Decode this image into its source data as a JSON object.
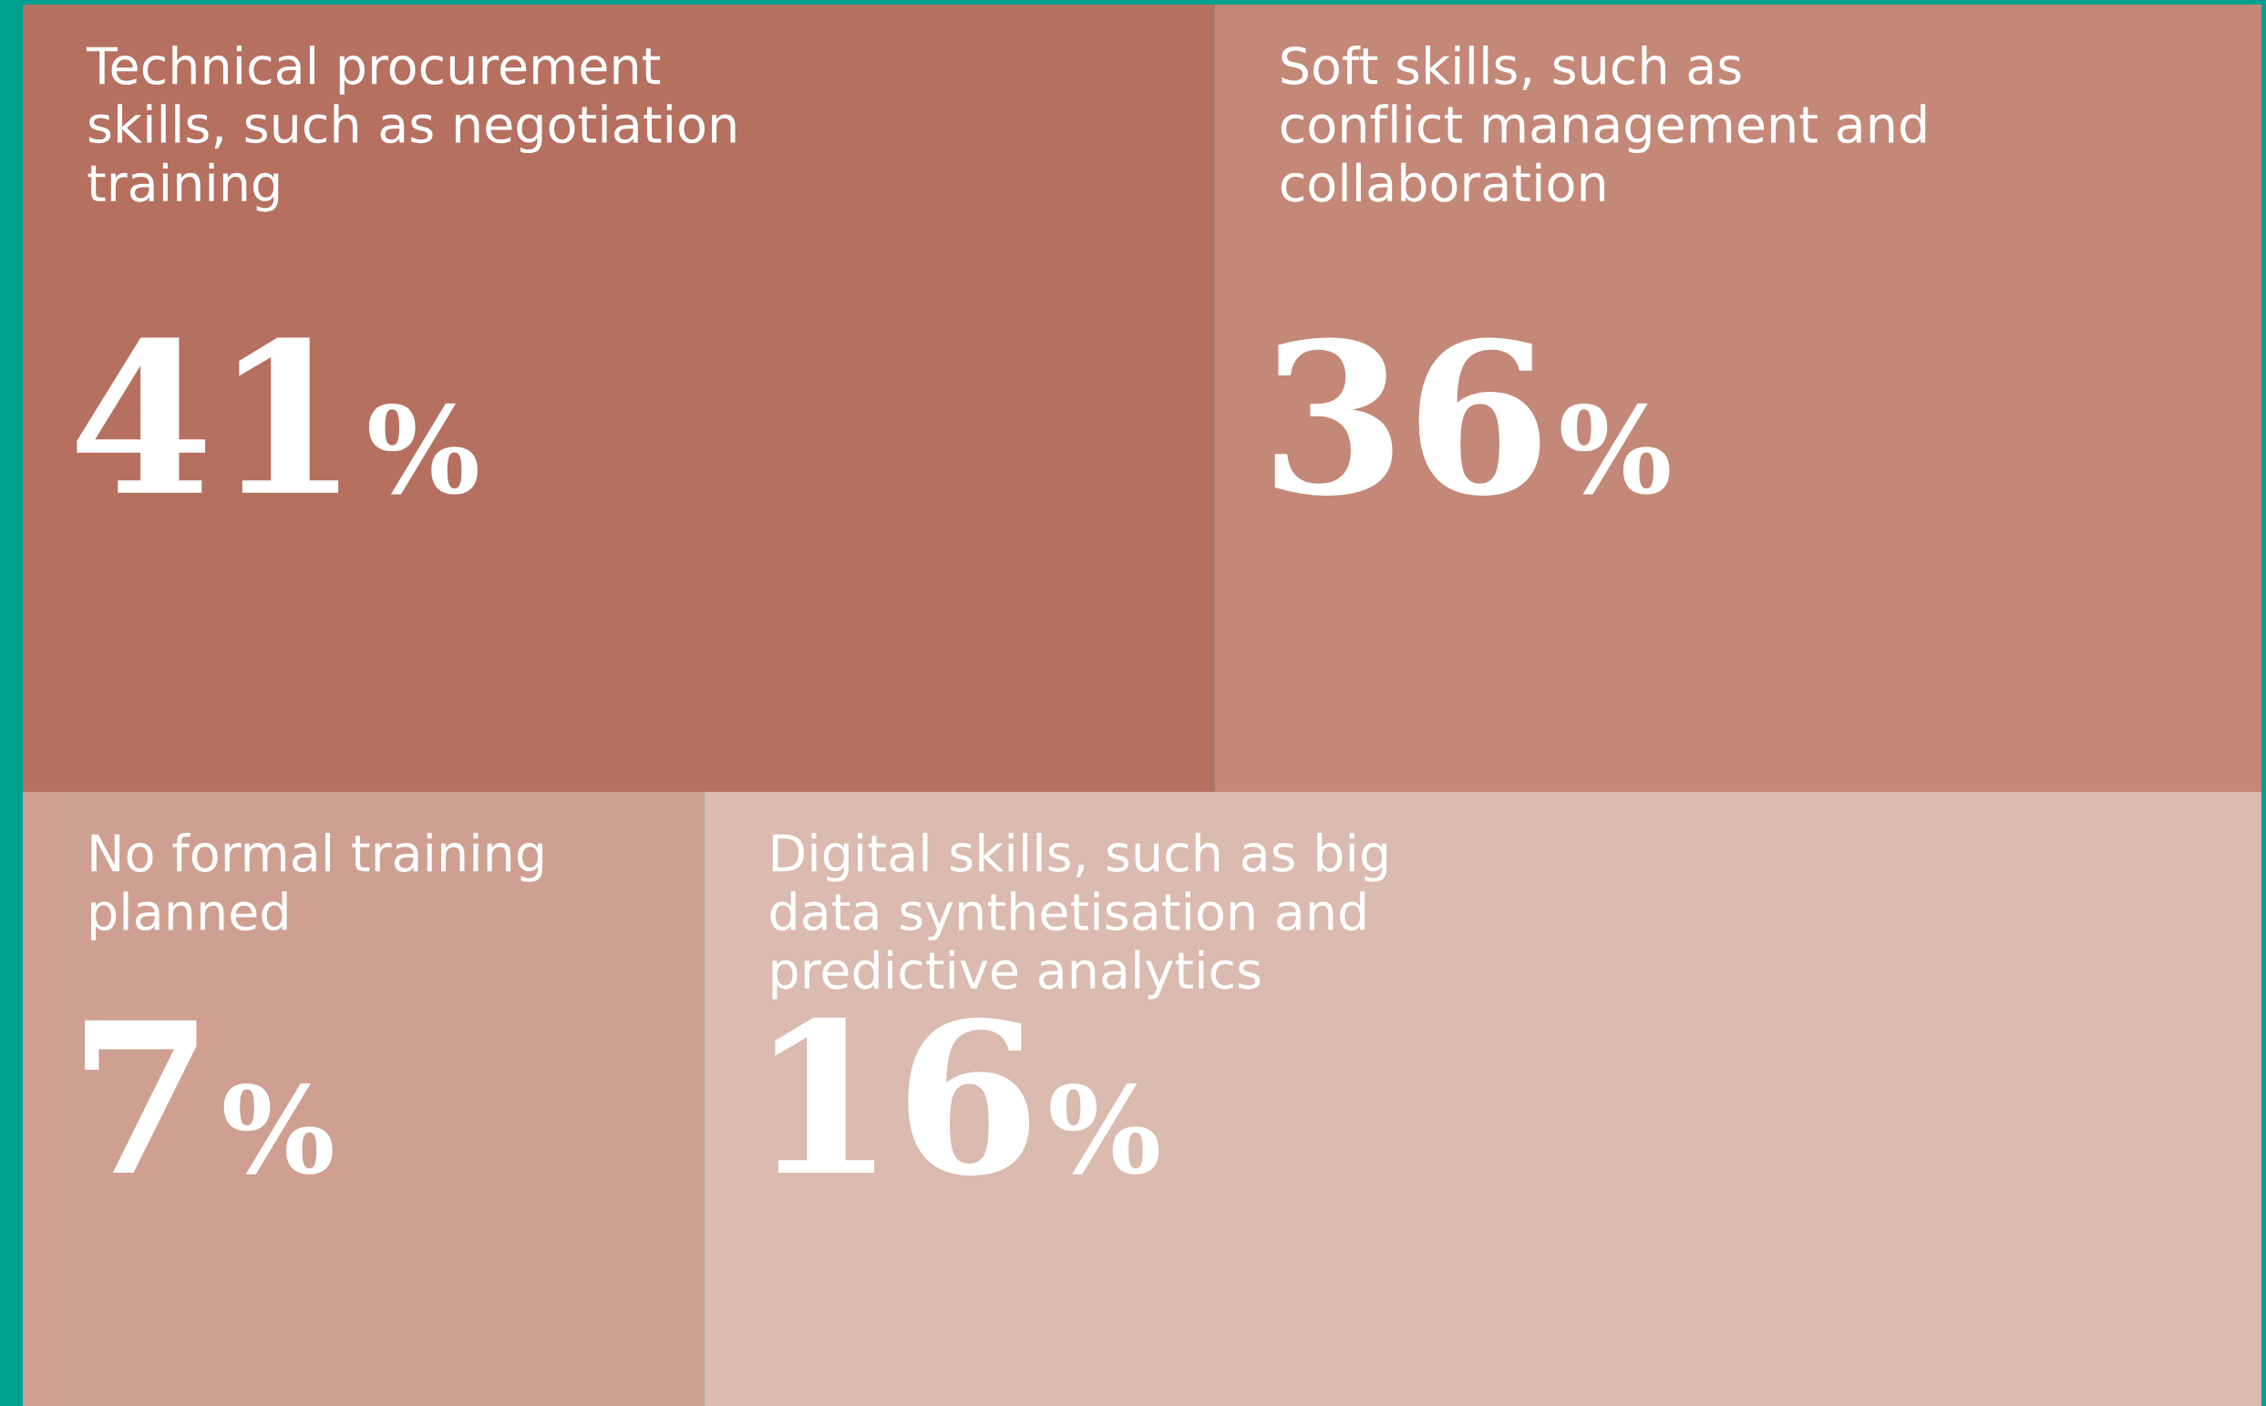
{
  "chart_data": {
    "type": "other",
    "categories": [
      "Technical procurement\nskills, such as negotiation\ntraining",
      "Soft skills, such as\nconflict management and\ncollaboration",
      "No formal training\nplanned",
      "Digital skills, such as big\ndata synthetisation and\npredictive analytics"
    ],
    "values": [
      41,
      36,
      7,
      16
    ],
    "value_labels": [
      "41%",
      "36%",
      "7%",
      "16%"
    ],
    "colors": [
      "#b57060",
      "#c48878",
      "#cf9f91",
      "#dbbab0"
    ]
  }
}
